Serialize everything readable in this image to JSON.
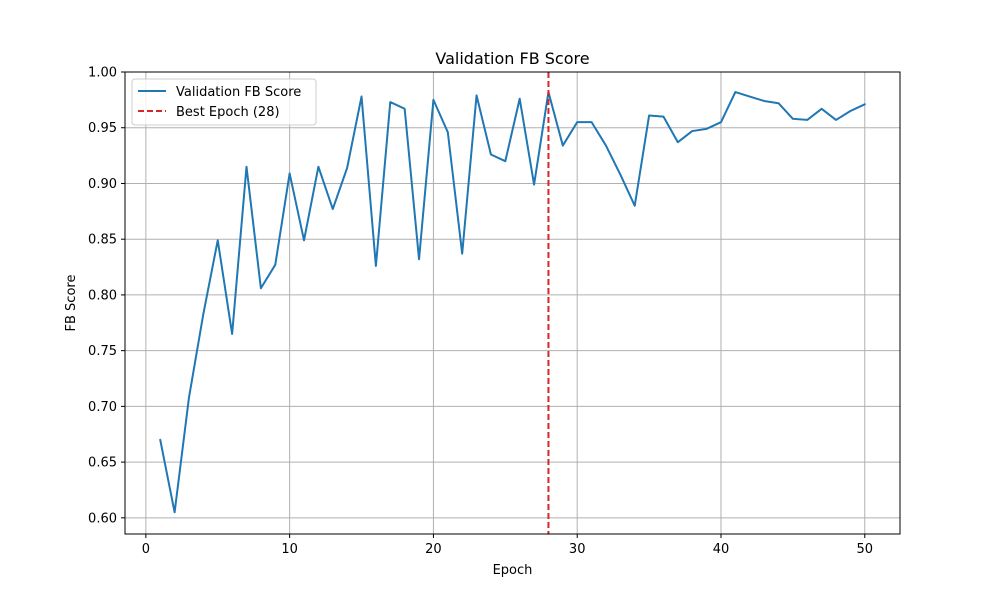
{
  "chart_data": {
    "type": "line",
    "title": "Validation FB Score",
    "xlabel": "Epoch",
    "ylabel": "FB Score",
    "xlim": [
      -1.45,
      52.45
    ],
    "ylim": [
      0.5855,
      1.0
    ],
    "xticks": [
      0,
      10,
      20,
      30,
      40,
      50
    ],
    "yticks": [
      0.6,
      0.65,
      0.7,
      0.75,
      0.8,
      0.85,
      0.9,
      0.95,
      1.0
    ],
    "xtick_labels": [
      "0",
      "10",
      "20",
      "30",
      "40",
      "50"
    ],
    "ytick_labels": [
      "0.60",
      "0.65",
      "0.70",
      "0.75",
      "0.80",
      "0.85",
      "0.90",
      "0.95",
      "1.00"
    ],
    "grid": true,
    "legend_position": "top-left",
    "series": [
      {
        "name": "Validation FB Score",
        "color": "#1f77b4",
        "style": "solid",
        "x": [
          1,
          2,
          3,
          4,
          5,
          6,
          7,
          8,
          9,
          10,
          11,
          12,
          13,
          14,
          15,
          16,
          17,
          18,
          19,
          20,
          21,
          22,
          23,
          24,
          25,
          26,
          27,
          28,
          29,
          30,
          31,
          32,
          33,
          34,
          35,
          36,
          37,
          38,
          39,
          40,
          41,
          42,
          43,
          44,
          45,
          46,
          47,
          48,
          49,
          50
        ],
        "values": [
          0.67,
          0.605,
          0.708,
          0.783,
          0.849,
          0.765,
          0.915,
          0.806,
          0.827,
          0.909,
          0.849,
          0.915,
          0.877,
          0.914,
          0.978,
          0.826,
          0.973,
          0.967,
          0.832,
          0.975,
          0.946,
          0.837,
          0.979,
          0.926,
          0.92,
          0.976,
          0.899,
          0.982,
          0.934,
          0.955,
          0.955,
          0.934,
          0.908,
          0.88,
          0.961,
          0.96,
          0.937,
          0.947,
          0.949,
          0.955,
          0.982,
          0.978,
          0.974,
          0.972,
          0.958,
          0.957,
          0.967,
          0.957,
          0.965,
          0.971
        ]
      }
    ],
    "vlines": [
      {
        "name": "Best Epoch (28)",
        "x": 28,
        "color": "#d62728",
        "style": "dashed"
      }
    ]
  }
}
